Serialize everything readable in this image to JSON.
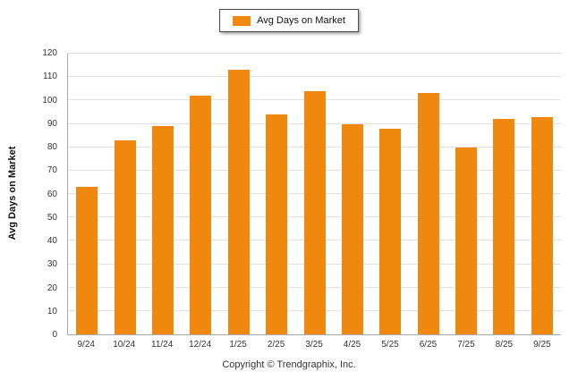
{
  "colors": {
    "bar": "#F0870F",
    "gridline": "#e2e2e2",
    "axis": "#aaaaaa"
  },
  "footer": {
    "copyright": "Copyright © Trendgraphix, Inc."
  },
  "chart_data": {
    "type": "bar",
    "title": "Avg Days on Market",
    "legend": "Avg Days on Market",
    "ylabel": "Avg Days on Market",
    "xlabel": "",
    "ylim": [
      0,
      120
    ],
    "ytick_step": 10,
    "legend_position": "top-center",
    "grid": true,
    "categories": [
      "9/24",
      "10/24",
      "11/24",
      "12/24",
      "1/25",
      "2/25",
      "3/25",
      "4/25",
      "5/25",
      "6/25",
      "7/25",
      "8/25",
      "9/25"
    ],
    "values": [
      63,
      83,
      89,
      102,
      113,
      94,
      104,
      90,
      88,
      103,
      80,
      92,
      93
    ]
  }
}
